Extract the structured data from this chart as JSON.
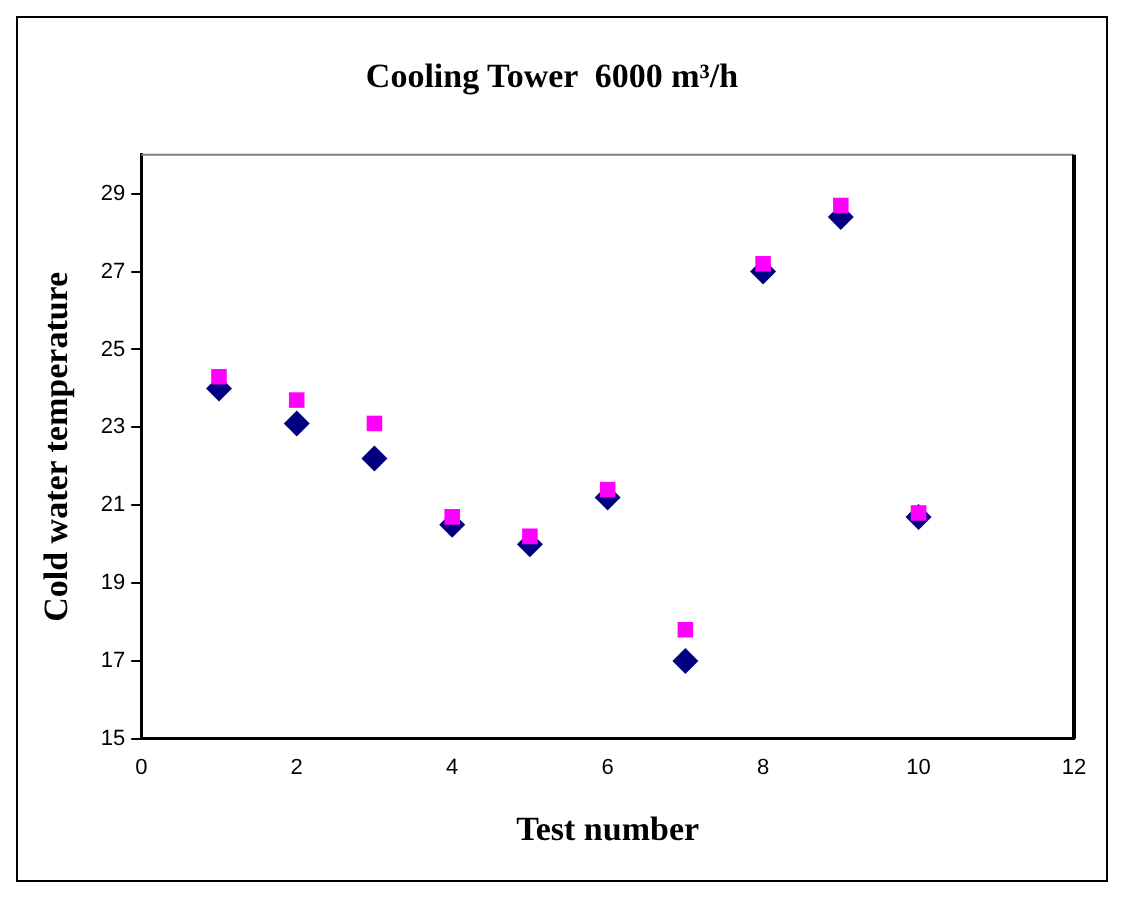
{
  "chart_data": {
    "type": "scatter",
    "title": "Cooling Tower  6000 m³/h",
    "xlabel": "Test number",
    "ylabel": "Cold water temperature",
    "x": [
      1,
      2,
      3,
      4,
      5,
      6,
      7,
      8,
      9,
      10
    ],
    "series": [
      {
        "color": "#ff00ff",
        "marker": "square",
        "values": [
          24.3,
          23.7,
          23.1,
          20.7,
          20.2,
          21.4,
          17.8,
          27.2,
          28.7,
          20.8
        ]
      },
      {
        "color": "#000080",
        "marker": "diamond",
        "values": [
          24.0,
          23.1,
          22.2,
          20.5,
          20.0,
          21.2,
          17.0,
          27.0,
          28.4,
          20.7
        ]
      }
    ],
    "xlim": [
      0,
      12
    ],
    "xticks": [
      0,
      2,
      4,
      6,
      8,
      10,
      12
    ],
    "ylim": [
      15,
      30
    ],
    "yticks": [
      15,
      17,
      19,
      21,
      23,
      25,
      27,
      29
    ],
    "grid": false,
    "legend": false
  }
}
